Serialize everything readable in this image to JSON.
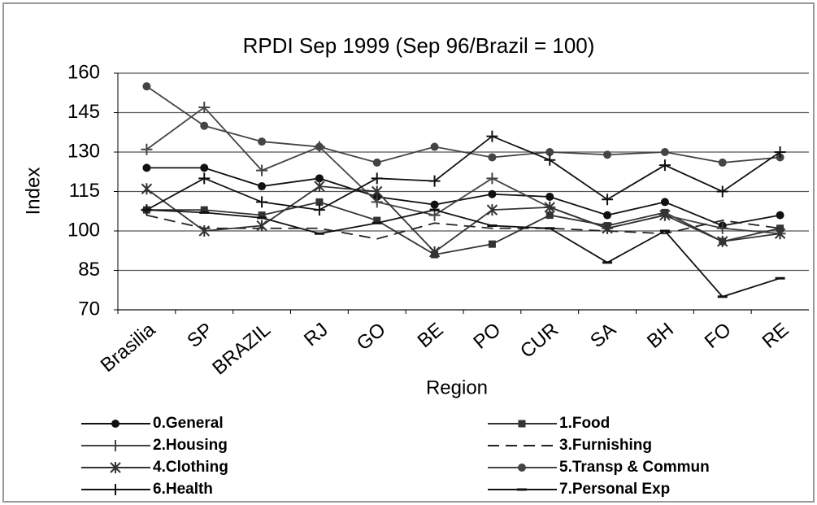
{
  "chart_data": {
    "type": "line",
    "title": "RPDI Sep 1999 (Sep 96/Brazil = 100)",
    "x_label": "Region",
    "y_label": "Index",
    "categories": [
      "Brasilia",
      "SP",
      "BRAZIL",
      "RJ",
      "GO",
      "BE",
      "PO",
      "CUR",
      "SA",
      "BH",
      "FO",
      "RE"
    ],
    "ylim": [
      70,
      160
    ],
    "yticks": [
      70,
      85,
      100,
      115,
      130,
      145,
      160
    ],
    "grid": true,
    "series": [
      {
        "name": "0.General",
        "color": "#111111",
        "marker": "circle",
        "values": [
          124,
          124,
          117,
          120,
          113,
          110,
          114,
          113,
          106,
          111,
          102,
          106
        ]
      },
      {
        "name": "1.Food",
        "color": "#333333",
        "marker": "square",
        "values": [
          108,
          108,
          106,
          111,
          104,
          91,
          95,
          106,
          102,
          107,
          96,
          101
        ]
      },
      {
        "name": "2.Housing",
        "color": "#444444",
        "marker": "plus",
        "values": [
          131,
          147,
          123,
          132,
          111,
          106,
          120,
          109,
          101,
          106,
          101,
          99
        ]
      },
      {
        "name": "3.Furnishing",
        "color": "#222222",
        "marker": "none",
        "dash": true,
        "values": [
          106,
          101,
          101,
          101,
          97,
          103,
          101,
          101,
          100,
          99,
          104,
          101
        ]
      },
      {
        "name": "4.Clothing",
        "color": "#333333",
        "marker": "star",
        "values": [
          116,
          100,
          102,
          117,
          115,
          92,
          108,
          109,
          101,
          106,
          96,
          99
        ]
      },
      {
        "name": "5.Transp & Commun",
        "color": "#444444",
        "marker": "circle",
        "values": [
          155,
          140,
          134,
          132,
          126,
          132,
          128,
          130,
          129,
          130,
          126,
          128
        ]
      },
      {
        "name": "6.Health",
        "color": "#111111",
        "marker": "plus",
        "values": [
          108,
          120,
          111,
          108,
          120,
          119,
          136,
          127,
          112,
          125,
          115,
          130
        ]
      },
      {
        "name": "7.Personal Exp",
        "color": "#111111",
        "marker": "dash",
        "values": [
          108,
          107,
          105,
          99,
          103,
          108,
          102,
          101,
          88,
          100,
          75,
          82
        ]
      }
    ]
  }
}
